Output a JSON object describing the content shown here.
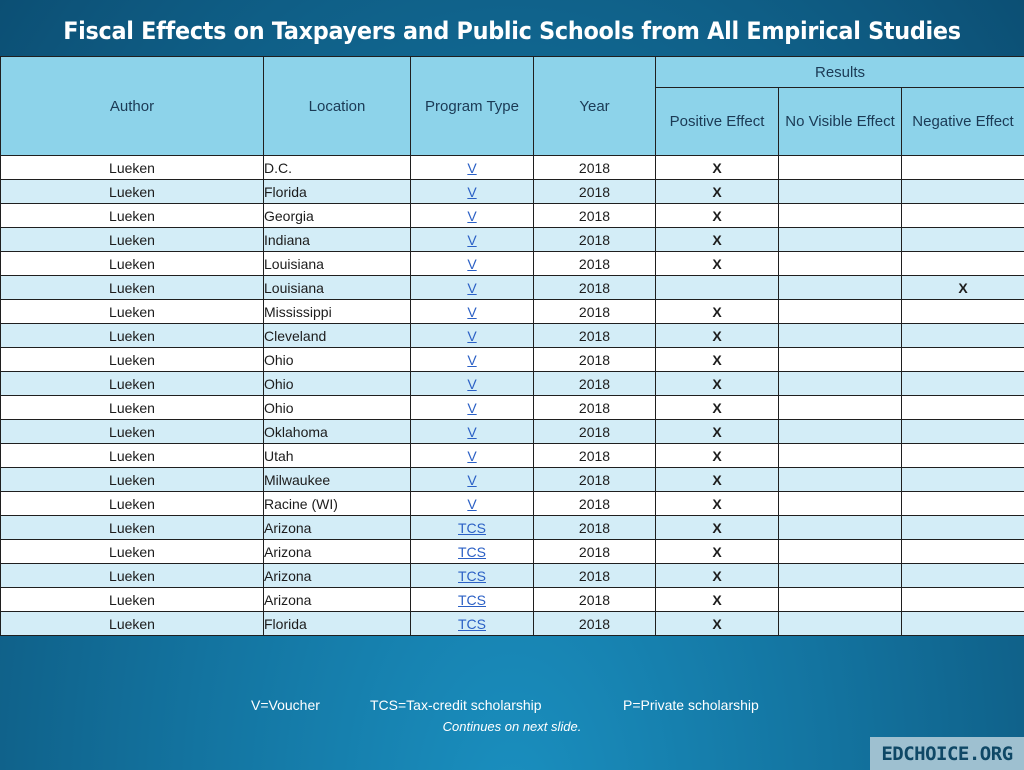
{
  "title": "Fiscal Effects on Taxpayers and Public Schools from All Empirical Studies",
  "header": {
    "author": "Author",
    "location": "Location",
    "program_type": "Program Type",
    "year": "Year",
    "results": "Results",
    "positive": "Positive Effect",
    "no_visible": "No Visible Effect",
    "negative": "Negative Effect"
  },
  "rows": [
    {
      "author": "Lueken",
      "location": "D.C.",
      "program": "V",
      "year": "2018",
      "positive": "X",
      "none": "",
      "negative": ""
    },
    {
      "author": "Lueken",
      "location": "Florida",
      "program": "V",
      "year": "2018",
      "positive": "X",
      "none": "",
      "negative": ""
    },
    {
      "author": "Lueken",
      "location": "Georgia",
      "program": "V",
      "year": "2018",
      "positive": "X",
      "none": "",
      "negative": ""
    },
    {
      "author": "Lueken",
      "location": "Indiana",
      "program": "V",
      "year": "2018",
      "positive": "X",
      "none": "",
      "negative": ""
    },
    {
      "author": "Lueken",
      "location": "Louisiana",
      "program": "V",
      "year": "2018",
      "positive": "X",
      "none": "",
      "negative": ""
    },
    {
      "author": "Lueken",
      "location": "Louisiana",
      "program": "V",
      "year": "2018",
      "positive": "",
      "none": "",
      "negative": "X"
    },
    {
      "author": "Lueken",
      "location": "Mississippi",
      "program": "V",
      "year": "2018",
      "positive": "X",
      "none": "",
      "negative": ""
    },
    {
      "author": "Lueken",
      "location": "Cleveland",
      "program": "V",
      "year": "2018",
      "positive": "X",
      "none": "",
      "negative": ""
    },
    {
      "author": "Lueken",
      "location": "Ohio",
      "program": "V",
      "year": "2018",
      "positive": "X",
      "none": "",
      "negative": ""
    },
    {
      "author": "Lueken",
      "location": "Ohio",
      "program": "V",
      "year": "2018",
      "positive": "X",
      "none": "",
      "negative": ""
    },
    {
      "author": "Lueken",
      "location": "Ohio",
      "program": "V",
      "year": "2018",
      "positive": "X",
      "none": "",
      "negative": ""
    },
    {
      "author": "Lueken",
      "location": "Oklahoma",
      "program": "V",
      "year": "2018",
      "positive": "X",
      "none": "",
      "negative": ""
    },
    {
      "author": "Lueken",
      "location": "Utah",
      "program": "V",
      "year": "2018",
      "positive": "X",
      "none": "",
      "negative": ""
    },
    {
      "author": "Lueken",
      "location": "Milwaukee",
      "program": "V",
      "year": "2018",
      "positive": "X",
      "none": "",
      "negative": ""
    },
    {
      "author": "Lueken",
      "location": "Racine (WI)",
      "program": "V",
      "year": "2018",
      "positive": "X",
      "none": "",
      "negative": ""
    },
    {
      "author": "Lueken",
      "location": "Arizona",
      "program": "TCS",
      "year": "2018",
      "positive": "X",
      "none": "",
      "negative": ""
    },
    {
      "author": "Lueken",
      "location": "Arizona",
      "program": "TCS",
      "year": "2018",
      "positive": "X",
      "none": "",
      "negative": ""
    },
    {
      "author": "Lueken",
      "location": "Arizona",
      "program": "TCS",
      "year": "2018",
      "positive": "X",
      "none": "",
      "negative": ""
    },
    {
      "author": "Lueken",
      "location": "Arizona",
      "program": "TCS",
      "year": "2018",
      "positive": "X",
      "none": "",
      "negative": ""
    },
    {
      "author": "Lueken",
      "location": "Florida",
      "program": "TCS",
      "year": "2018",
      "positive": "X",
      "none": "",
      "negative": ""
    }
  ],
  "legend": {
    "voucher": "V=Voucher",
    "tcs": "TCS=Tax-credit scholarship",
    "private": "P=Private scholarship"
  },
  "continues": "Continues on next slide.",
  "brand": "EDCHOICE.ORG",
  "colors": {
    "header_bg": "#8dd3ea",
    "row_alt": "#d3edf7",
    "link": "#2b60c5",
    "background": "#13739f"
  }
}
